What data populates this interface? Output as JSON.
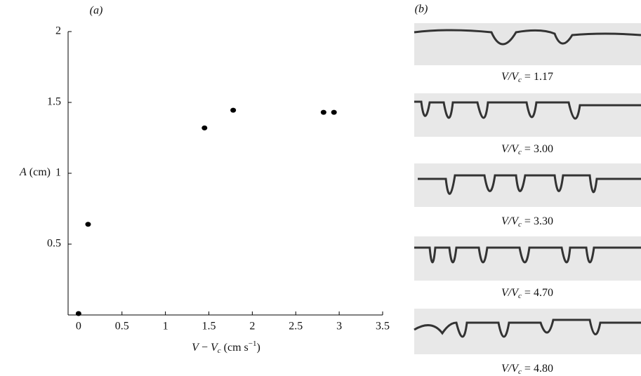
{
  "chart_data": {
    "type": "scatter",
    "panel_label": "(a)",
    "x_label": {
      "var": "V",
      "op": " − ",
      "var2": "V",
      "sub": "c",
      "unit": " (cm s",
      "exp": "−1",
      "close": ")"
    },
    "y_label": {
      "var": "A",
      "unit": " (cm)"
    },
    "x": [
      0.0,
      0.11,
      1.45,
      1.78,
      2.82,
      2.94
    ],
    "values": [
      0.01,
      0.64,
      1.32,
      1.445,
      1.43,
      1.43
    ],
    "color": "#000000",
    "xlim": [
      -0.12,
      3.5
    ],
    "xticks": [
      0,
      0.5,
      1,
      1.5,
      2,
      2.5,
      3,
      3.5
    ],
    "ylim": [
      0,
      2
    ],
    "yticks": [
      0.5,
      1,
      1.5,
      2
    ]
  },
  "panel_b": {
    "label": "(b)",
    "captions": [
      {
        "lhs": "V/V",
        "sub": "c",
        "rhs": " = 1.17"
      },
      {
        "lhs": "V/V",
        "sub": "c",
        "rhs": " = 3.00"
      },
      {
        "lhs": "V/V",
        "sub": "c",
        "rhs": " = 3.30"
      },
      {
        "lhs": "V/V",
        "sub": "c",
        "rhs": " = 4.70"
      },
      {
        "lhs": "V/V",
        "sub": "c",
        "rhs": " = 4.80"
      }
    ]
  }
}
